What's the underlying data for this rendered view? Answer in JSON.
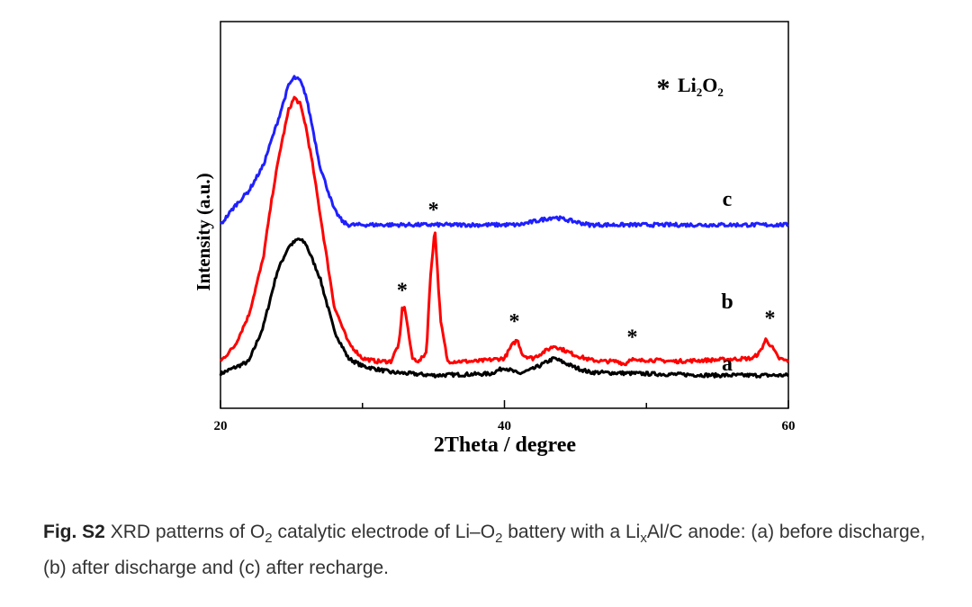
{
  "chart_data": {
    "type": "line",
    "xlabel": "2Theta / degree",
    "ylabel": "Intensity (a.u.)",
    "xlim": [
      20,
      60
    ],
    "ylim": [
      0,
      1
    ],
    "xticks": [
      20,
      40,
      60
    ],
    "grid": false,
    "legend": {
      "marker": "*",
      "label_parts": [
        "Li",
        "2",
        "O",
        "2"
      ]
    },
    "series": [
      {
        "name": "a",
        "color": "#000000",
        "x": [
          20,
          22,
          23,
          24,
          24.8,
          25.5,
          26,
          27,
          28,
          29,
          30,
          32,
          35,
          39,
          40,
          41,
          42,
          43.5,
          45,
          46,
          50,
          55,
          60
        ],
        "y": [
          0.03,
          0.07,
          0.18,
          0.36,
          0.44,
          0.465,
          0.45,
          0.34,
          0.17,
          0.08,
          0.055,
          0.035,
          0.025,
          0.03,
          0.05,
          0.03,
          0.045,
          0.08,
          0.05,
          0.035,
          0.03,
          0.025,
          0.025
        ]
      },
      {
        "name": "b",
        "color": "#ff0000",
        "x": [
          20,
          21,
          22,
          23,
          23.7,
          24.2,
          24.8,
          25.2,
          25.6,
          26,
          26.5,
          27,
          28,
          29,
          30,
          31,
          32,
          32.6,
          32.8,
          33,
          33.5,
          34,
          34.5,
          34.8,
          35.1,
          35.5,
          36,
          38,
          39,
          40,
          40.5,
          40.9,
          41.3,
          42,
          43.5,
          45,
          46,
          47,
          48,
          48.5,
          48.9,
          49.3,
          50,
          52,
          55,
          57.5,
          58,
          58.4,
          58.8,
          59.3,
          60
        ],
        "y": [
          0.07,
          0.12,
          0.22,
          0.4,
          0.62,
          0.75,
          0.88,
          0.92,
          0.9,
          0.83,
          0.7,
          0.55,
          0.25,
          0.13,
          0.08,
          0.07,
          0.07,
          0.13,
          0.24,
          0.24,
          0.08,
          0.07,
          0.1,
          0.35,
          0.5,
          0.2,
          0.07,
          0.07,
          0.075,
          0.08,
          0.12,
          0.14,
          0.09,
          0.08,
          0.12,
          0.09,
          0.075,
          0.07,
          0.07,
          0.06,
          0.08,
          0.07,
          0.075,
          0.07,
          0.075,
          0.08,
          0.1,
          0.14,
          0.12,
          0.08,
          0.07
        ]
      },
      {
        "name": "c",
        "color": "#1f1fff",
        "x": [
          20,
          21,
          22,
          23,
          24,
          24.8,
          25.2,
          25.6,
          26,
          26.5,
          27,
          28,
          28.6,
          29,
          30,
          35,
          41,
          43.5,
          46,
          50,
          55,
          60
        ],
        "y": [
          0.51,
          0.57,
          0.62,
          0.7,
          0.84,
          0.96,
          0.985,
          0.975,
          0.93,
          0.82,
          0.7,
          0.56,
          0.52,
          0.51,
          0.51,
          0.51,
          0.51,
          0.535,
          0.51,
          0.51,
          0.51,
          0.51
        ]
      }
    ],
    "markers": [
      {
        "x": 32.8,
        "y": 0.3,
        "label": "*"
      },
      {
        "x": 35.0,
        "y": 0.56,
        "label": "*"
      },
      {
        "x": 40.7,
        "y": 0.2,
        "label": "*"
      },
      {
        "x": 49.0,
        "y": 0.15,
        "label": "*"
      },
      {
        "x": 58.7,
        "y": 0.21,
        "label": "*"
      }
    ]
  },
  "caption": {
    "fig_label": "Fig. S2",
    "t1": " XRD patterns of O",
    "s1": "2",
    "t2": " catalytic electrode of Li–O",
    "s2": "2",
    "t3": " battery with a Li",
    "s3": "x",
    "t4": "Al/C anode: (a) before discharge, (b) after discharge and (c) after recharge."
  }
}
